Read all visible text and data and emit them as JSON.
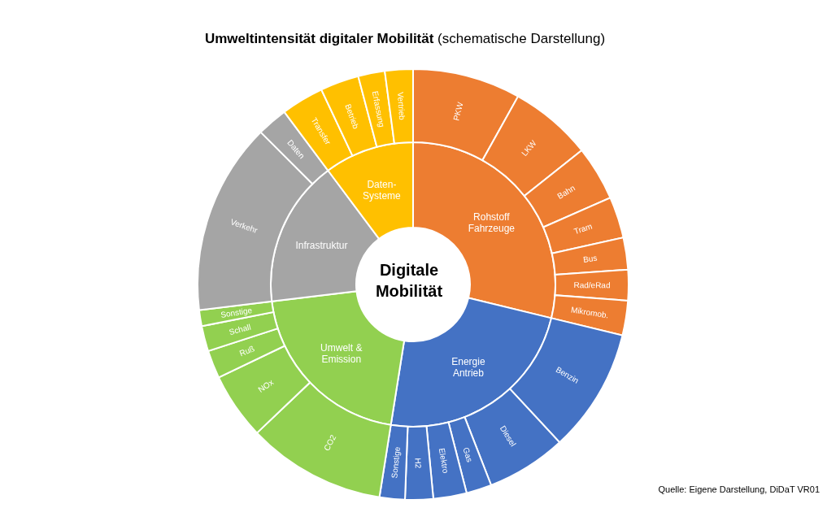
{
  "chart_data": [
    {
      "type": "donut",
      "title": "Umweltintensität digitaler Mobilität (schematische Darstellung)",
      "categories": [
        "Rohstoff Fahrzeuge",
        "Energie Antrieb",
        "Umwelt & Emission",
        "Infrastruktur",
        "Daten- Systeme"
      ],
      "values": [
        28.8,
        23.7,
        20.6,
        16.7,
        10.2
      ],
      "colors": [
        "#ed7d31",
        "#4472c4",
        "#92d050",
        "#a5a5a5",
        "#ffc000"
      ],
      "annotations": [
        "Digitale Mobilität",
        "Quelle: Eigene Darstellung, DiDaT VR01"
      ]
    },
    {
      "type": "donut",
      "categories": [
        "PKW",
        "LKW",
        "Bahn",
        "Tram",
        "Bus",
        "Rad/eRad",
        "Mikromob.",
        "Benzin",
        "Diesel",
        "Gas",
        "Elektro",
        "H2",
        "Sonstige",
        "CO2",
        "NOx",
        "Ruß",
        "Schall",
        "Sonstige",
        "Verkehr",
        "Daten",
        "Transfer",
        "Betrieb",
        "Erfassung",
        "Vertrieb"
      ],
      "values": [
        8.1,
        6.2,
        4.1,
        3.1,
        2.4,
        2.3,
        2.6,
        9.3,
        6.0,
        1.9,
        2.5,
        2.1,
        1.9,
        10.4,
        5.0,
        2.1,
        1.9,
        1.2,
        14.4,
        2.3,
        3.2,
        2.9,
        2.0,
        2.1
      ],
      "colors": [
        "#ed7d31",
        "#ed7d31",
        "#ed7d31",
        "#ed7d31",
        "#ed7d31",
        "#ed7d31",
        "#ed7d31",
        "#4472c4",
        "#4472c4",
        "#4472c4",
        "#4472c4",
        "#4472c4",
        "#4472c4",
        "#92d050",
        "#92d050",
        "#92d050",
        "#92d050",
        "#92d050",
        "#a5a5a5",
        "#a5a5a5",
        "#ffc000",
        "#ffc000",
        "#ffc000",
        "#ffc000"
      ]
    }
  ]
}
